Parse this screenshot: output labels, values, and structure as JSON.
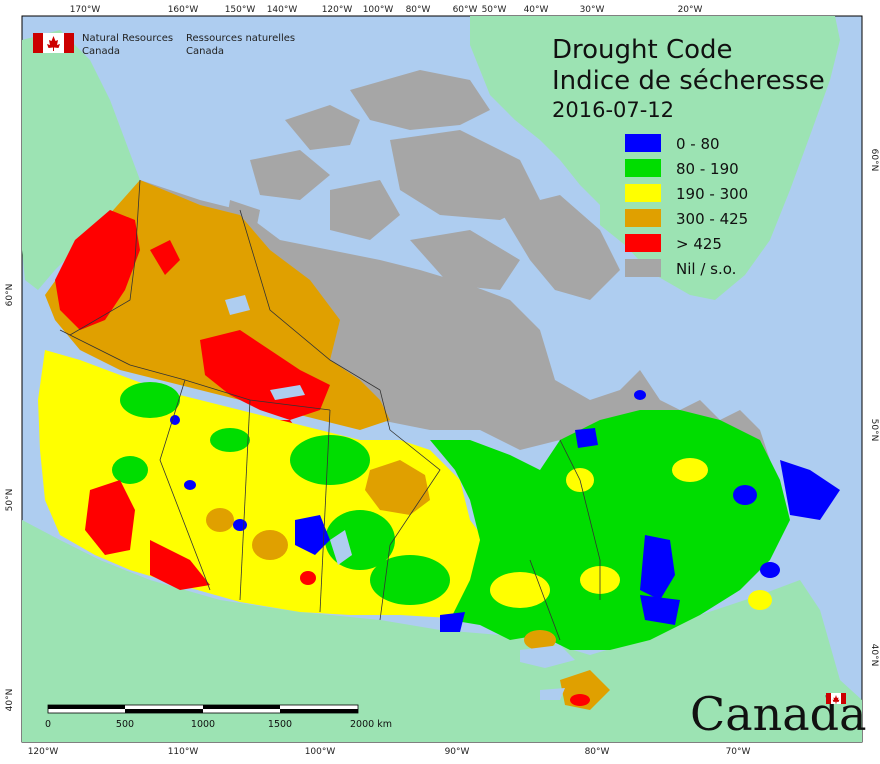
{
  "header": {
    "org_en_line1": "Natural Resources",
    "org_en_line2": "Canada",
    "org_fr_line1": "Ressources naturelles",
    "org_fr_line2": "Canada"
  },
  "title": {
    "line1": "Drought Code",
    "line2": "Indice de sécheresse",
    "date": "2016-07-12"
  },
  "legend": {
    "items": [
      {
        "label": "0 - 80",
        "color": "#0000ff"
      },
      {
        "label": "80 - 190",
        "color": "#00dd00"
      },
      {
        "label": "190 - 300",
        "color": "#ffff00"
      },
      {
        "label": "300 - 425",
        "color": "#e0a000"
      },
      {
        "label": "> 425",
        "color": "#ff0000"
      },
      {
        "label": "Nil / s.o.",
        "color": "#a6a6a6"
      }
    ]
  },
  "graticule": {
    "top_labels": [
      "170°W",
      "160°W",
      "150°W",
      "140°W",
      "120°W",
      "100°W",
      "80°W",
      "60°W",
      "50°W",
      "40°W",
      "30°W",
      "20°W"
    ],
    "bottom_labels": [
      "120°W",
      "110°W",
      "100°W",
      "90°W",
      "80°W",
      "70°W"
    ],
    "left_labels": [
      "60°N",
      "50°N",
      "40°N"
    ],
    "right_labels": [
      "60°N",
      "50°N",
      "40°N"
    ]
  },
  "scale_bar": {
    "labels": [
      "0",
      "500",
      "1000",
      "1500",
      "2000 km"
    ]
  },
  "wordmark": {
    "text": "Canada"
  },
  "colors": {
    "ocean": "#aecdf0",
    "land_outside": "#9ce3b3",
    "nil": "#a6a6a6"
  }
}
